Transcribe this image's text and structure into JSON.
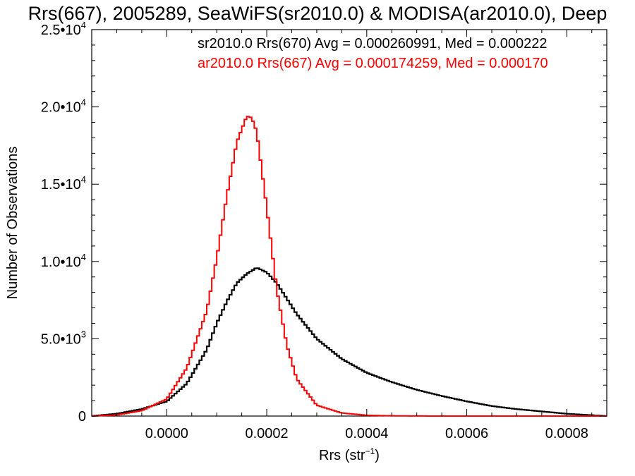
{
  "chart_data": {
    "type": "line",
    "title": "Rrs(667), 2005289, SeaWiFS(sr2010.0) & MODISA(ar2010.0), Deep",
    "xlabel": "Rrs (str",
    "xlabel_sup": "−1",
    "xlabel_close": ")",
    "ylabel": "Number of Observations",
    "xlim": [
      -0.00015,
      0.00088
    ],
    "ylim": [
      0,
      25000
    ],
    "x_ticks": [
      {
        "value": 0.0,
        "label": "0.0000"
      },
      {
        "value": 0.0002,
        "label": "0.0002"
      },
      {
        "value": 0.0004,
        "label": "0.0004"
      },
      {
        "value": 0.0006,
        "label": "0.0006"
      },
      {
        "value": 0.0008,
        "label": "0.0008"
      }
    ],
    "y_ticks": [
      {
        "value": 0,
        "mant": "0",
        "exp": ""
      },
      {
        "value": 5000,
        "mant": "5.0•10",
        "exp": "3"
      },
      {
        "value": 10000,
        "mant": "1.0•10",
        "exp": "4"
      },
      {
        "value": 15000,
        "mant": "1.5•10",
        "exp": "4"
      },
      {
        "value": 20000,
        "mant": "2.0•10",
        "exp": "4"
      },
      {
        "value": 25000,
        "mant": "2.5•10",
        "exp": "4"
      }
    ],
    "grid": false,
    "legend_position": "top-right",
    "series": [
      {
        "name": "sr2010.0 Rrs(670) Avg = 0.000260991, Med = 0.000222",
        "color": "#000000",
        "x": [
          -0.00015,
          -0.0001,
          -5e-05,
          0.0,
          4e-05,
          8e-05,
          0.0001,
          0.00012,
          0.00014,
          0.00016,
          0.00018,
          0.0002,
          0.00022,
          0.00024,
          0.00026,
          0.0003,
          0.00035,
          0.0004,
          0.00045,
          0.0005,
          0.00055,
          0.0006,
          0.00065,
          0.0007,
          0.00075,
          0.0008,
          0.00088
        ],
        "y": [
          0,
          150,
          450,
          950,
          2100,
          4300,
          6000,
          7400,
          8600,
          9200,
          9600,
          9300,
          8600,
          7600,
          6600,
          5000,
          3700,
          2800,
          2200,
          1700,
          1300,
          950,
          650,
          450,
          300,
          150,
          0
        ]
      },
      {
        "name": "ar2010.0 Rrs(667) Avg = 0.000174259, Med = 0.000170",
        "color": "#ff0000",
        "x": [
          -0.00015,
          -0.0001,
          -5e-05,
          0.0,
          4e-05,
          8e-05,
          0.0001,
          0.00012,
          0.00014,
          0.00016,
          0.00017,
          0.00018,
          0.0002,
          0.00022,
          0.00024,
          0.00026,
          0.0003,
          0.00035,
          0.0004,
          0.00045,
          0.0005,
          0.00055,
          0.0006,
          0.00065,
          0.0007,
          0.00088
        ],
        "y": [
          0,
          70,
          350,
          1100,
          3100,
          6800,
          10200,
          14200,
          17700,
          19400,
          19300,
          18400,
          13500,
          8200,
          4600,
          2400,
          700,
          200,
          50,
          15,
          5,
          0,
          0,
          0,
          0,
          0
        ]
      }
    ]
  }
}
